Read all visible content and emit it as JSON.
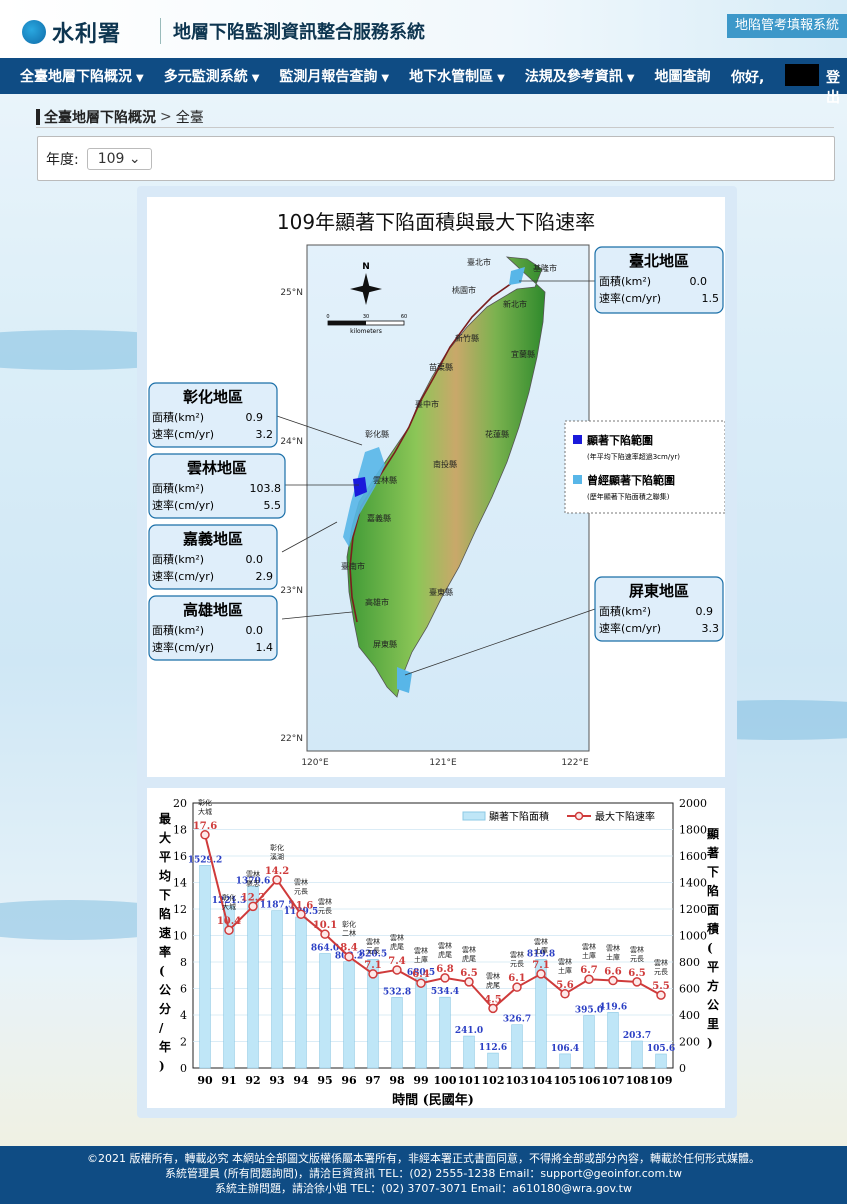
{
  "header": {
    "brand": "水利署",
    "system_name": "地層下陷監測資訊整合服務系統",
    "report_link": "地陷管考填報系統"
  },
  "nav": {
    "items": [
      {
        "label": "全臺地層下陷概況",
        "caret": "▼"
      },
      {
        "label": "多元監測系統",
        "caret": "▼"
      },
      {
        "label": "監測月報告查詢",
        "caret": "▼"
      },
      {
        "label": "地下水管制區",
        "caret": "▼"
      },
      {
        "label": "法規及參考資訊",
        "caret": "▼"
      },
      {
        "label": "地圖查詢",
        "caret": ""
      }
    ],
    "greeting": "你好,",
    "logout": "登出"
  },
  "breadcrumb": {
    "first": "全臺地層下陷概況",
    "sep": ">",
    "current": "全臺"
  },
  "year_filter": {
    "label": "年度:",
    "value": "109",
    "caret": "⌄"
  },
  "map": {
    "title": "109年顯著下陷面積與最大下陷速率",
    "compass": "N",
    "scale_ticks": [
      "0",
      "30",
      "60"
    ],
    "scale_unit": "kilometers",
    "lat_labels": [
      "25°N",
      "24°N",
      "23°N",
      "22°N"
    ],
    "lon_labels": [
      "120°E",
      "121°E",
      "122°E"
    ],
    "cities": [
      "臺北市",
      "基隆市",
      "桃園市",
      "新北市",
      "新竹縣",
      "苗栗縣",
      "臺中市",
      "宜蘭縣",
      "彰化縣",
      "南投縣",
      "花蓮縣",
      "雲林縣",
      "嘉義縣",
      "臺南市",
      "高雄市",
      "臺東縣",
      "屏東縣"
    ],
    "legend": [
      {
        "label": "顯著下陷範圍",
        "note": "(年平均下陷速率超過3cm/yr)",
        "color": "#1a1adb"
      },
      {
        "label": "曾經顯著下陷範圍",
        "note": "(歷年顯著下陷面積之聯集)",
        "color": "#58b6e8"
      }
    ],
    "area_label": "面積(km²)",
    "rate_label": "速率(cm/yr)",
    "regions": [
      {
        "name": "臺北地區",
        "area": "0.0",
        "rate": "1.5"
      },
      {
        "name": "彰化地區",
        "area": "0.9",
        "rate": "3.2"
      },
      {
        "name": "雲林地區",
        "area": "103.8",
        "rate": "5.5"
      },
      {
        "name": "嘉義地區",
        "area": "0.0",
        "rate": "2.9"
      },
      {
        "name": "高雄地區",
        "area": "0.0",
        "rate": "1.4"
      },
      {
        "name": "屏東地區",
        "area": "0.9",
        "rate": "3.3"
      }
    ]
  },
  "chart_data": {
    "type": "bar",
    "categories": [
      "90",
      "91",
      "92",
      "93",
      "94",
      "95",
      "96",
      "97",
      "98",
      "99",
      "100",
      "101",
      "102",
      "103",
      "104",
      "105",
      "106",
      "107",
      "108",
      "109"
    ],
    "series": [
      {
        "name": "顯著下陷面積",
        "kind": "bar",
        "axis": "right",
        "color": "#bfe6f7",
        "values": [
          1529.2,
          1221.3,
          1370.6,
          1187.5,
          1139.5,
          864.0,
          803.2,
          820.5,
          532.8,
          680.5,
          534.4,
          241.0,
          112.6,
          326.7,
          819.8,
          106.4,
          395.0,
          419.6,
          203.7,
          105.6
        ]
      },
      {
        "name": "最大下陷速率",
        "kind": "line",
        "axis": "left",
        "color": "#cf3b3b",
        "values": [
          17.6,
          10.4,
          12.2,
          14.2,
          11.6,
          10.1,
          8.4,
          7.1,
          7.4,
          6.4,
          6.8,
          6.5,
          4.5,
          6.1,
          7.1,
          5.6,
          6.7,
          6.6,
          6.5,
          5.5
        ]
      }
    ],
    "location_labels": [
      [
        "彰化",
        "大城"
      ],
      [
        "彰化",
        "大城"
      ],
      [
        "雲林",
        "褒忠"
      ],
      [
        "彰化",
        "溪湖"
      ],
      [
        "雲林",
        "元長"
      ],
      [
        "雲林",
        "元長"
      ],
      [
        "彰化",
        "二林"
      ],
      [
        "雲林",
        "元長"
      ],
      [
        "雲林",
        "虎尾"
      ],
      [
        "雲林",
        "土庫"
      ],
      [
        "雲林",
        "虎尾"
      ],
      [
        "雲林",
        "虎尾"
      ],
      [
        "雲林",
        "虎尾"
      ],
      [
        "雲林",
        "元長"
      ],
      [
        "雲林",
        "土庫"
      ],
      [
        "雲林",
        "土庫"
      ],
      [
        "雲林",
        "土庫"
      ],
      [
        "雲林",
        "土庫"
      ],
      [
        "雲林",
        "元長"
      ],
      [
        "雲林",
        "元長"
      ]
    ],
    "ylabel_left": "最大平均下陷速率(公分/年)",
    "ylabel_right": "顯著下陷面積(平方公里)",
    "xlabel": "時間 (民國年)",
    "ylim_left": [
      0,
      20
    ],
    "ylim_right": [
      0,
      2000
    ],
    "yticks_left": [
      "0",
      "2",
      "4",
      "6",
      "8",
      "10",
      "12",
      "14",
      "16",
      "18",
      "20"
    ],
    "yticks_right": [
      "0",
      "200",
      "400",
      "600",
      "800",
      "1000",
      "1200",
      "1400",
      "1600",
      "1800",
      "2000"
    ],
    "legend_position": "top-right",
    "grid": true
  },
  "footer": {
    "line1": "©2021 版權所有，轉載必究 本網站全部圖文版權係屬本署所有，非經本署正式書面同意，不得將全部或部分內容，轉載於任何形式媒體。",
    "line2": "系統管理員 (所有問題詢問)，請洽巨資資訊 TEL：(02) 2555-1238 Email：support@geoinfor.com.tw",
    "line3": "系統主辦問題，請洽徐小姐 TEL：(02) 3707-3071 Email：a610180@wra.gov.tw"
  },
  "colors": {
    "nav_bg": "#0f4c84",
    "accent": "#3d98c9",
    "callout_bg": "#dfeefa",
    "callout_border": "#1a6fa8"
  }
}
